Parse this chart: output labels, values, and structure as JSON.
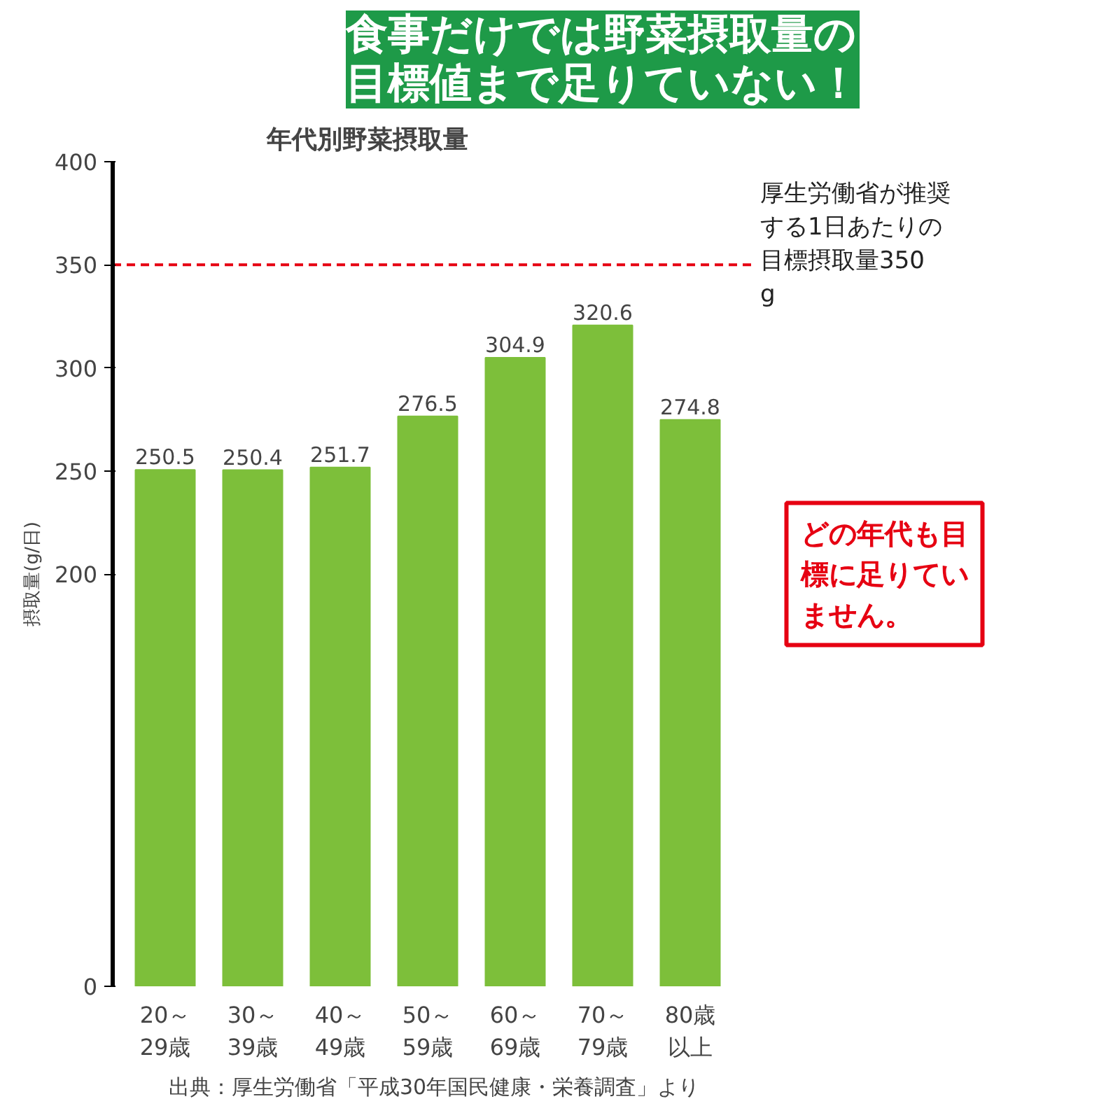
{
  "chart_data": {
    "type": "bar",
    "title": "食事だけでは野菜摂取量の目標値まで足りていない！",
    "subtitle": "年代別野菜摂取量",
    "ylabel": "摂取量(g/日)",
    "categories": [
      "20～29歳",
      "30～39歳",
      "40～49歳",
      "50～59歳",
      "60～69歳",
      "70～79歳",
      "80歳以上"
    ],
    "values": [
      250.5,
      250.4,
      251.7,
      276.5,
      304.9,
      320.6,
      274.8
    ],
    "color": "#7dbf3a",
    "data_labels": true,
    "ylim": [
      0,
      400
    ],
    "yticks": [
      0,
      200,
      250,
      300,
      350,
      400
    ],
    "grid": false,
    "ref_lines": [
      {
        "axis": "y",
        "value": 350,
        "label": "厚生労働省が推奨する1日あたりの目標摂取量350g",
        "color": "#e60012",
        "line_style": "dashed"
      }
    ],
    "annotations": [
      "どの年代も目標に足りていません。",
      "出典：厚生労働省「平成30年国民健康・栄養調査」より"
    ]
  }
}
